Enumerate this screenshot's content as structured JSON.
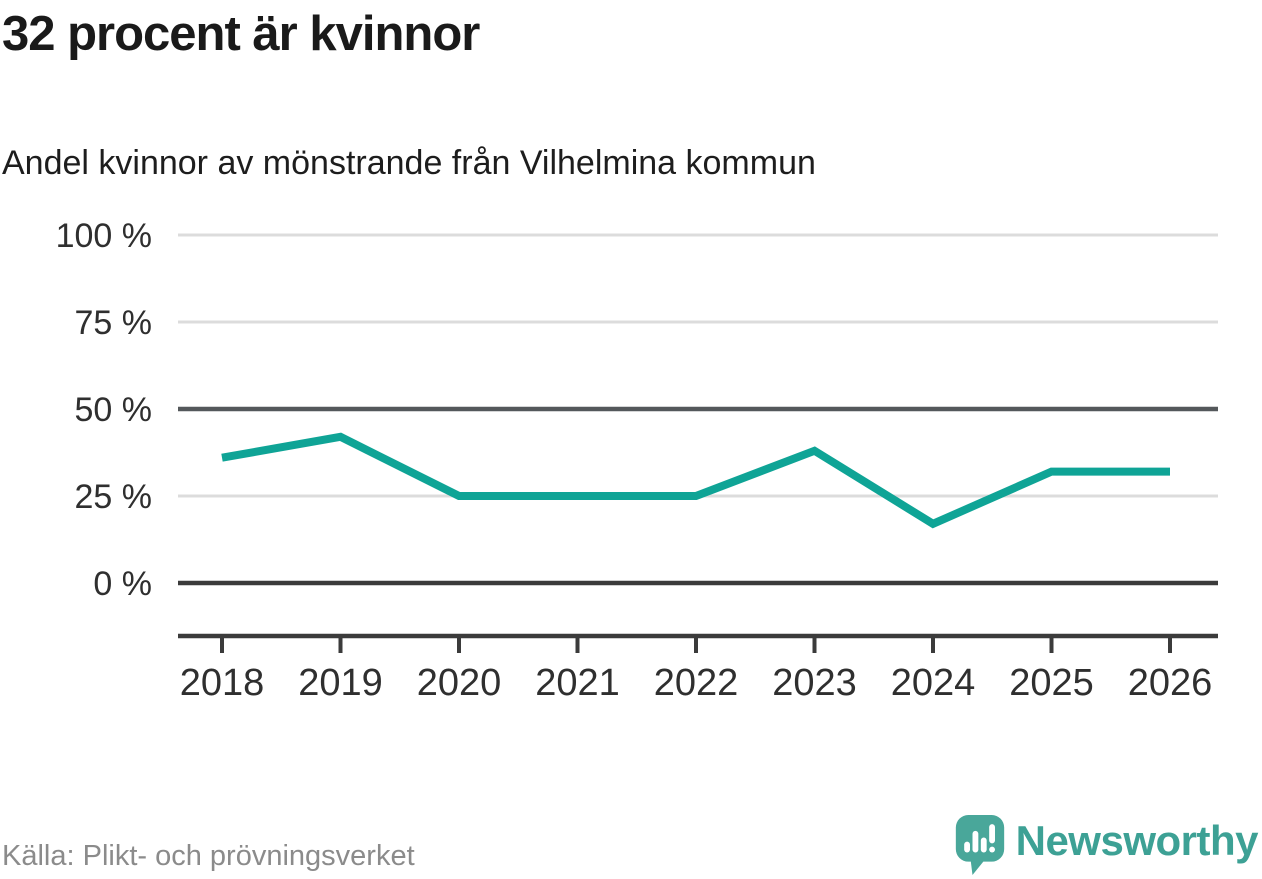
{
  "page": {
    "title": "32 procent är kvinnor",
    "subtitle": "Andel kvinnor av mönstrande från Vilhelmina kommun"
  },
  "footer": {
    "source": "Källa: Plikt- och prövningsverket",
    "brand_name": "Newsworthy"
  },
  "colors": {
    "line": "#0fa496",
    "grid_light": "#dcdcdc",
    "grid_benchmark": "#54585b",
    "axis": "#3b3b3b",
    "tick_text": "#2f2f2f",
    "title_text": "#1a1a1a",
    "subtitle_text": "#1d1d1d",
    "muted_text": "#8b8b8b",
    "brand_teal": "#3da195",
    "brand_icon_fill": "#49a79a"
  },
  "chart_data": {
    "type": "line",
    "title": "32 procent är kvinnor",
    "subtitle": "Andel kvinnor av mönstrande från Vilhelmina kommun",
    "source": "Källa: Plikt- och prövningsverket",
    "x": [
      "2018",
      "2019",
      "2020",
      "2021",
      "2022",
      "2023",
      "2024",
      "2025",
      "2026"
    ],
    "series": [
      {
        "name": "Andel kvinnor av mönstrande",
        "color": "#0fa496",
        "values": [
          36,
          42,
          25,
          25,
          25,
          38,
          17,
          32,
          32
        ]
      }
    ],
    "unit": "%",
    "ylim": [
      0,
      100
    ],
    "yticks": [
      0,
      25,
      50,
      75,
      100
    ],
    "ytick_format": "{v} %",
    "reference_line": 50,
    "grid": "horizontal",
    "legend": "none",
    "markers": false
  }
}
